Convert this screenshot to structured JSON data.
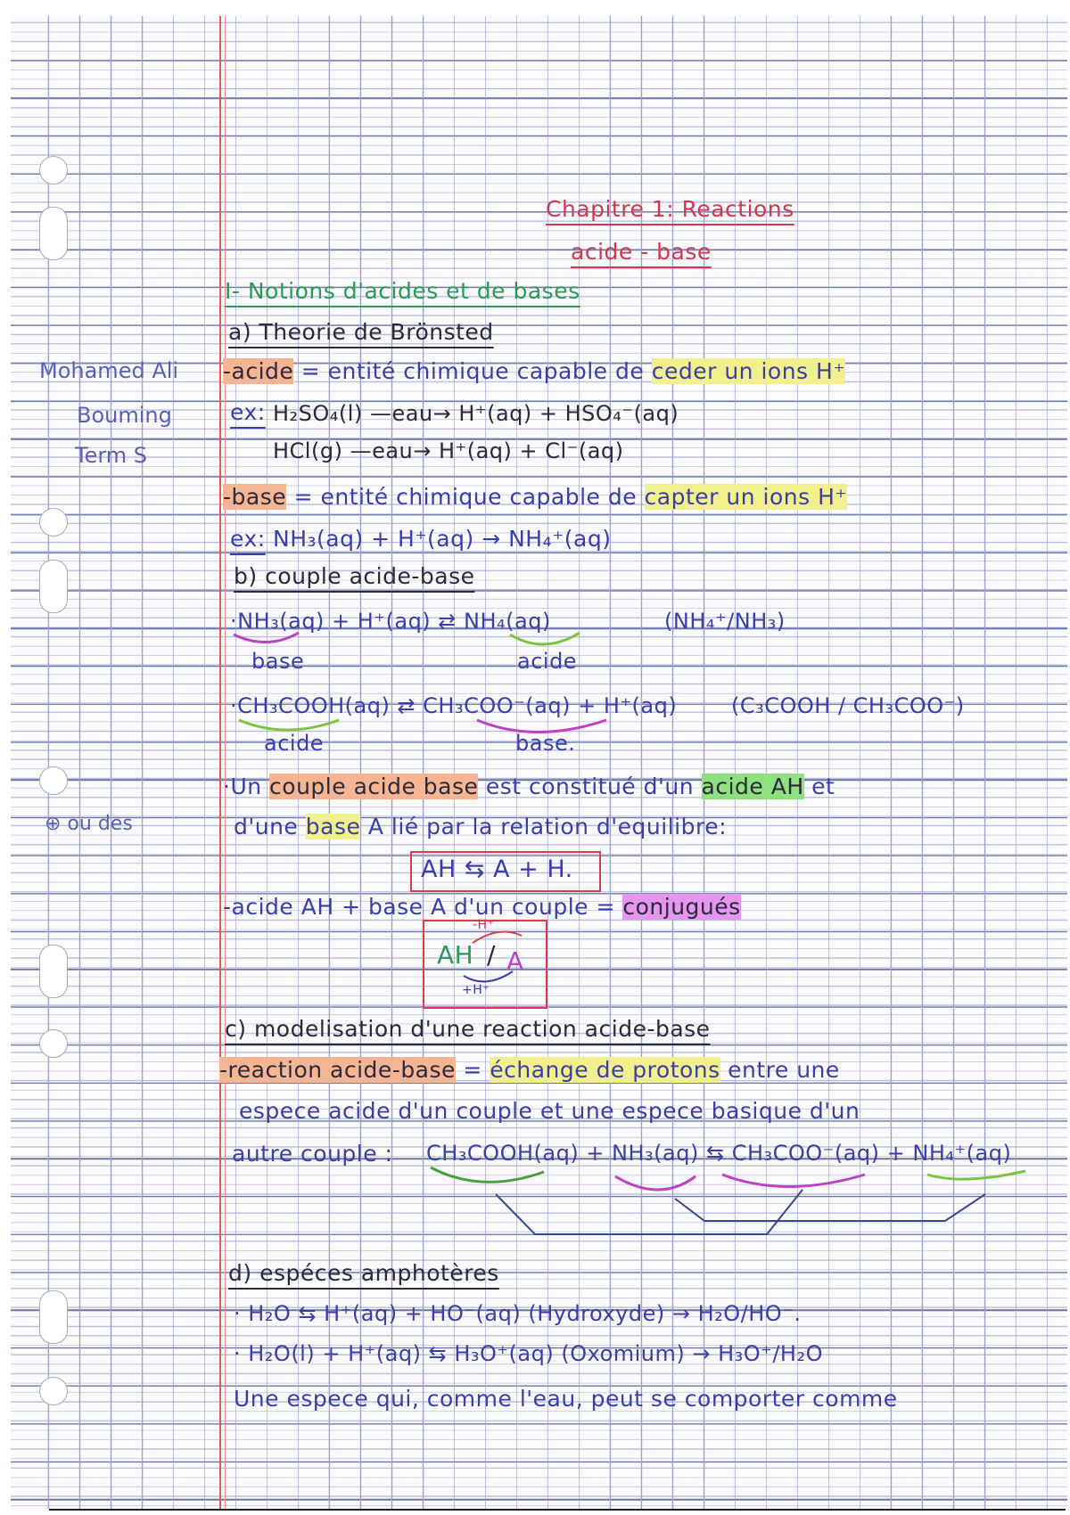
{
  "margin_note": {
    "name": "Mohamed Ali",
    "surname": "Bouming",
    "class": "Term S",
    "side_note": "⊕ ou des"
  },
  "title": {
    "line1": "Chapitre 1: Reactions",
    "line2": "acide - base"
  },
  "section1": {
    "heading": "I- Notions d'acides et de bases",
    "a_title": "a) Theorie de Brönsted",
    "acide_term": "-acide",
    "acide_def": " = entité chimique capable de ",
    "acide_key": "ceder un ions H⁺",
    "ex_label": "ex:",
    "ex1": "H₂SO₄(l) —eau→ H⁺(aq) + HSO₄⁻(aq)",
    "ex2": "HCl(g) —eau→ H⁺(aq) + Cl⁻(aq)",
    "base_term": "-base",
    "base_def": " = entité chimique capable de ",
    "base_key": "capter un ions H⁺",
    "ex3": "NH₃(aq) + H⁺(aq) → NH₄⁺(aq)",
    "b_title": "b) couple acide-base",
    "eq1": "·NH₃(aq) + H⁺(aq) ⇄ NH₄(aq)",
    "eq1_couple": "(NH₄⁺/NH₃)",
    "eq1_label_base": "base",
    "eq1_label_acide": "acide",
    "eq2": "·CH₃COOH(aq) ⇄ CH₃COO⁻(aq) + H⁺(aq)",
    "eq2_couple": "(C₃COOH / CH₃COO⁻)",
    "eq2_label_acide": "acide",
    "eq2_label_base": "base.",
    "def1_pre": "·Un ",
    "def1_key": "couple acide base",
    "def1_mid": " est constitué d'un ",
    "def1_key2": "acide AH",
    "def1_end": " et",
    "def2_pre": "d'une ",
    "def2_key": "base",
    "def2_end": " A lié par la relation d'equilibre:",
    "relation": "AH ⇆ A + H.",
    "conj_pre": "-acide AH + base A d'un couple = ",
    "conj_key": "conjugués",
    "diagram": {
      "top": "-H⁺",
      "main_acid": "AH",
      "slash": "/",
      "main_base": "A",
      "bottom": "+H⁺"
    }
  },
  "section_c": {
    "title": "c) modelisation d'une reaction acide-base",
    "term": "-reaction acide-base",
    "eq": " = ",
    "key": "échange de protons",
    "rest1": " entre une",
    "rest2": "espece acide d'un couple et une espece basique d'un",
    "rest3": "autre couple :",
    "reaction": "CH₃COOH(aq) + NH₃(aq) ⇆ CH₃COO⁻(aq) + NH₄⁺(aq)"
  },
  "section_d": {
    "title": "d) espéces amphotères",
    "eq1": "· H₂O ⇆ H⁺(aq) + HO⁻(aq)  (Hydroxyde) → H₂O/HO⁻.",
    "eq2": "· H₂O(l) + H⁺(aq) ⇆ H₃O⁺(aq) (Oxomium) → H₃O⁺/H₂O",
    "last": "Une espece qui, comme l'eau, peut se comporter comme"
  },
  "colors": {
    "ink": "#3a3fa8",
    "title_red": "#d4364a",
    "heading_green": "#2a9a55",
    "margin_red": "#e0585c",
    "highlight_orange": "#f6b592",
    "highlight_yellow": "#f1f08c",
    "highlight_green": "#8fe07e",
    "highlight_pink": "#e596ee"
  }
}
